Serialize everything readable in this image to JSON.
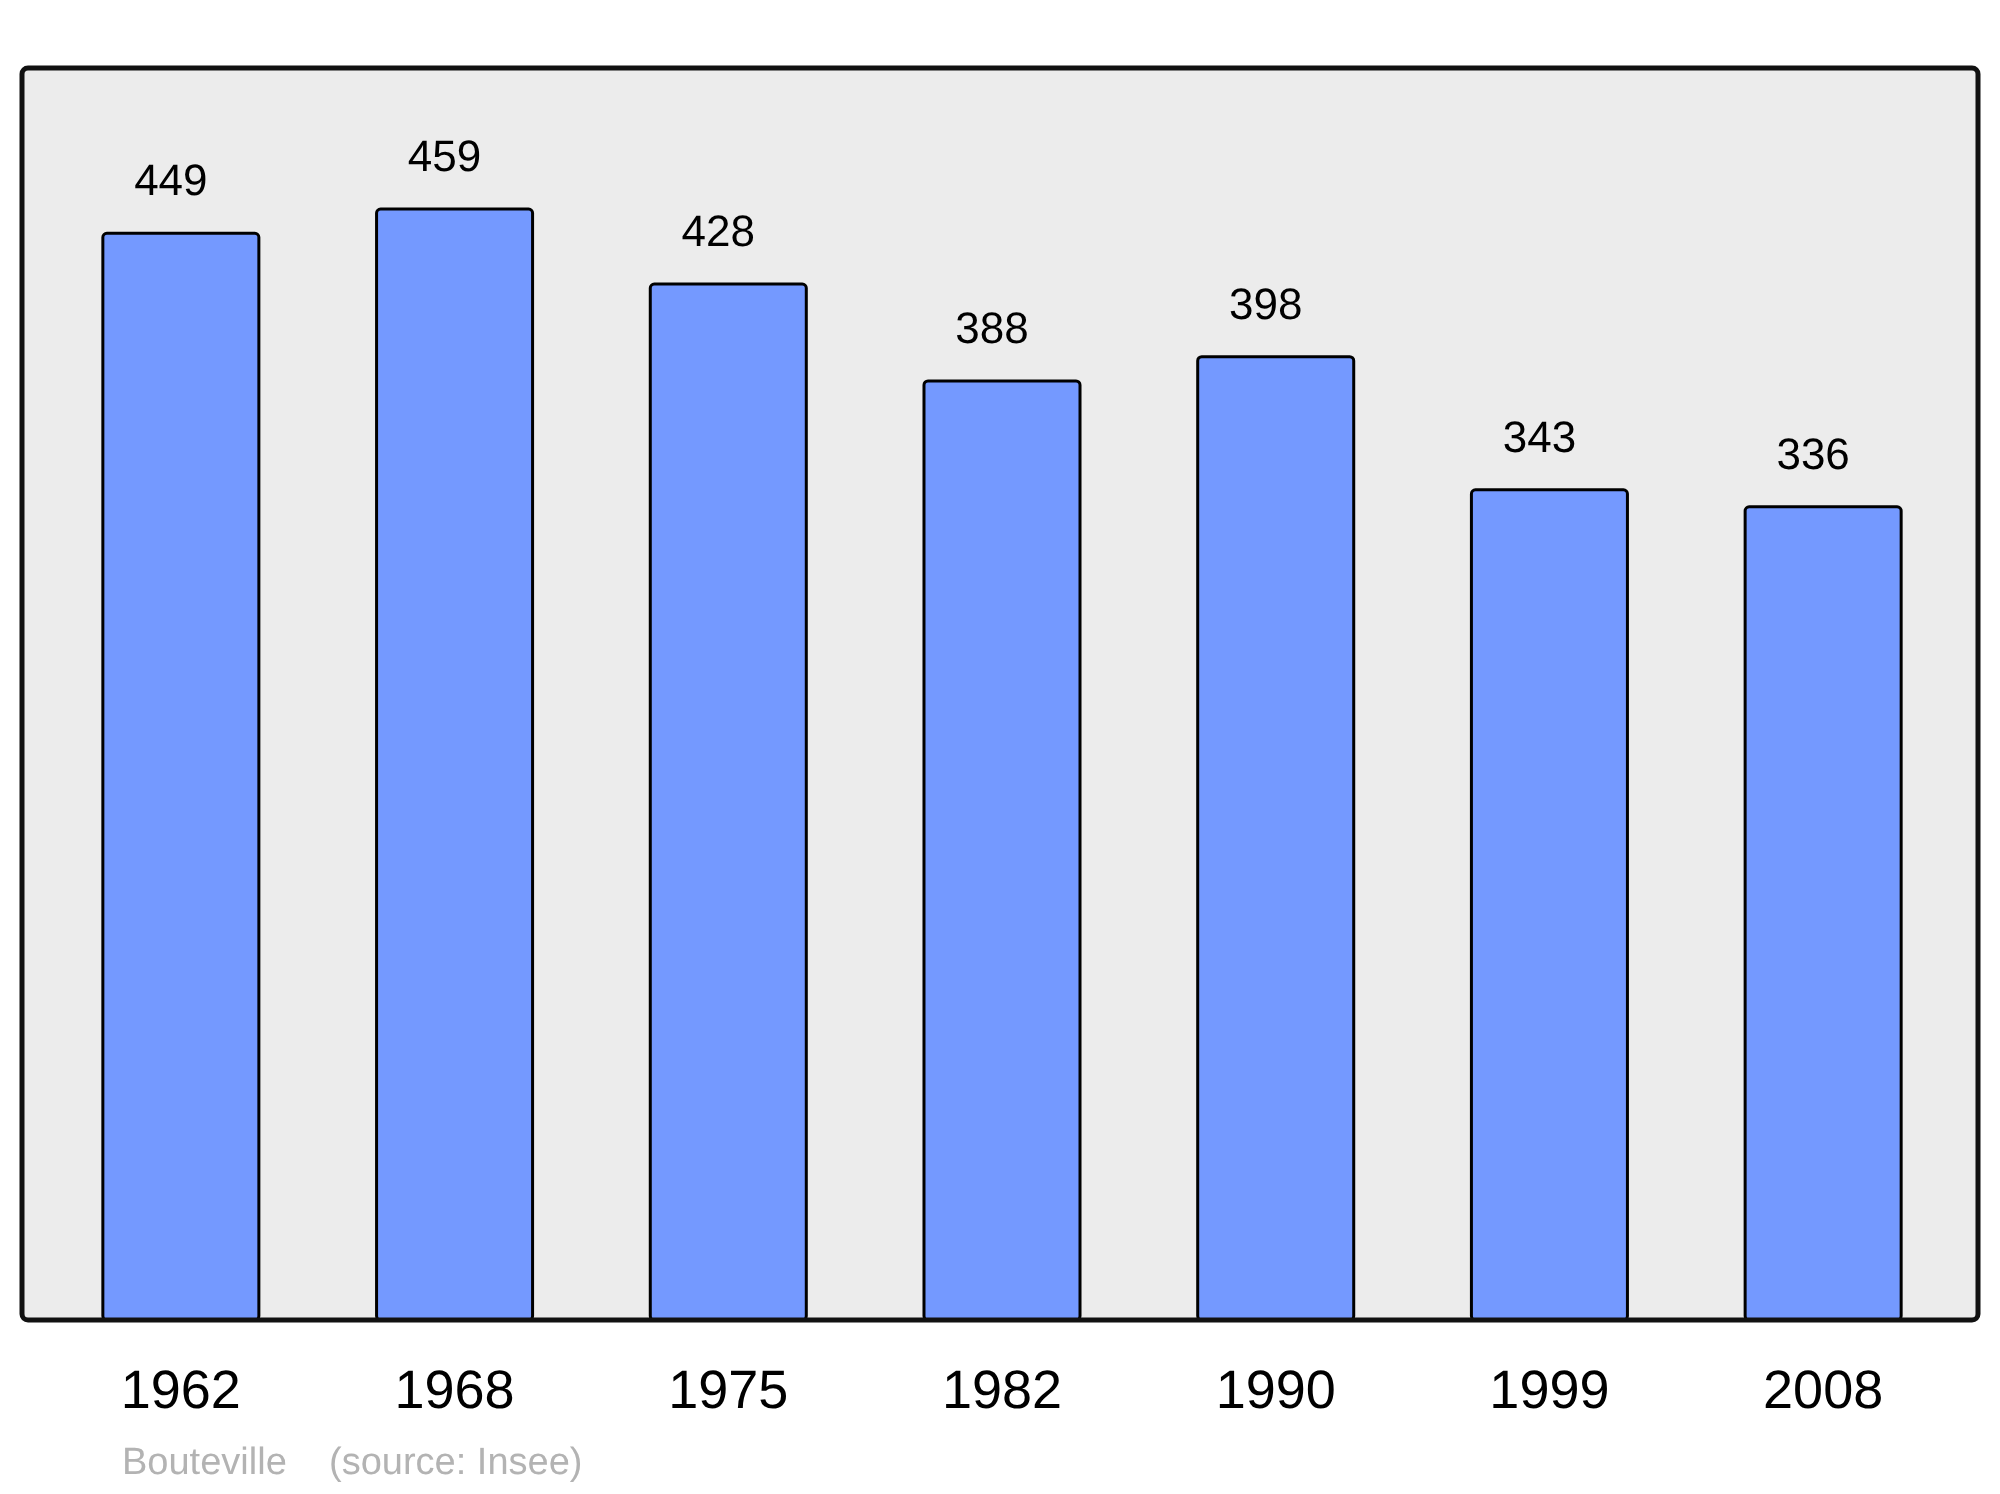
{
  "chart_data": {
    "type": "bar",
    "categories": [
      "1962",
      "1968",
      "1975",
      "1982",
      "1990",
      "1999",
      "2008"
    ],
    "values": [
      449,
      459,
      428,
      388,
      398,
      343,
      336
    ],
    "color": "#7499ff",
    "data_labels": true,
    "annotations": [
      "Bouteville    (source: Insee)"
    ]
  }
}
